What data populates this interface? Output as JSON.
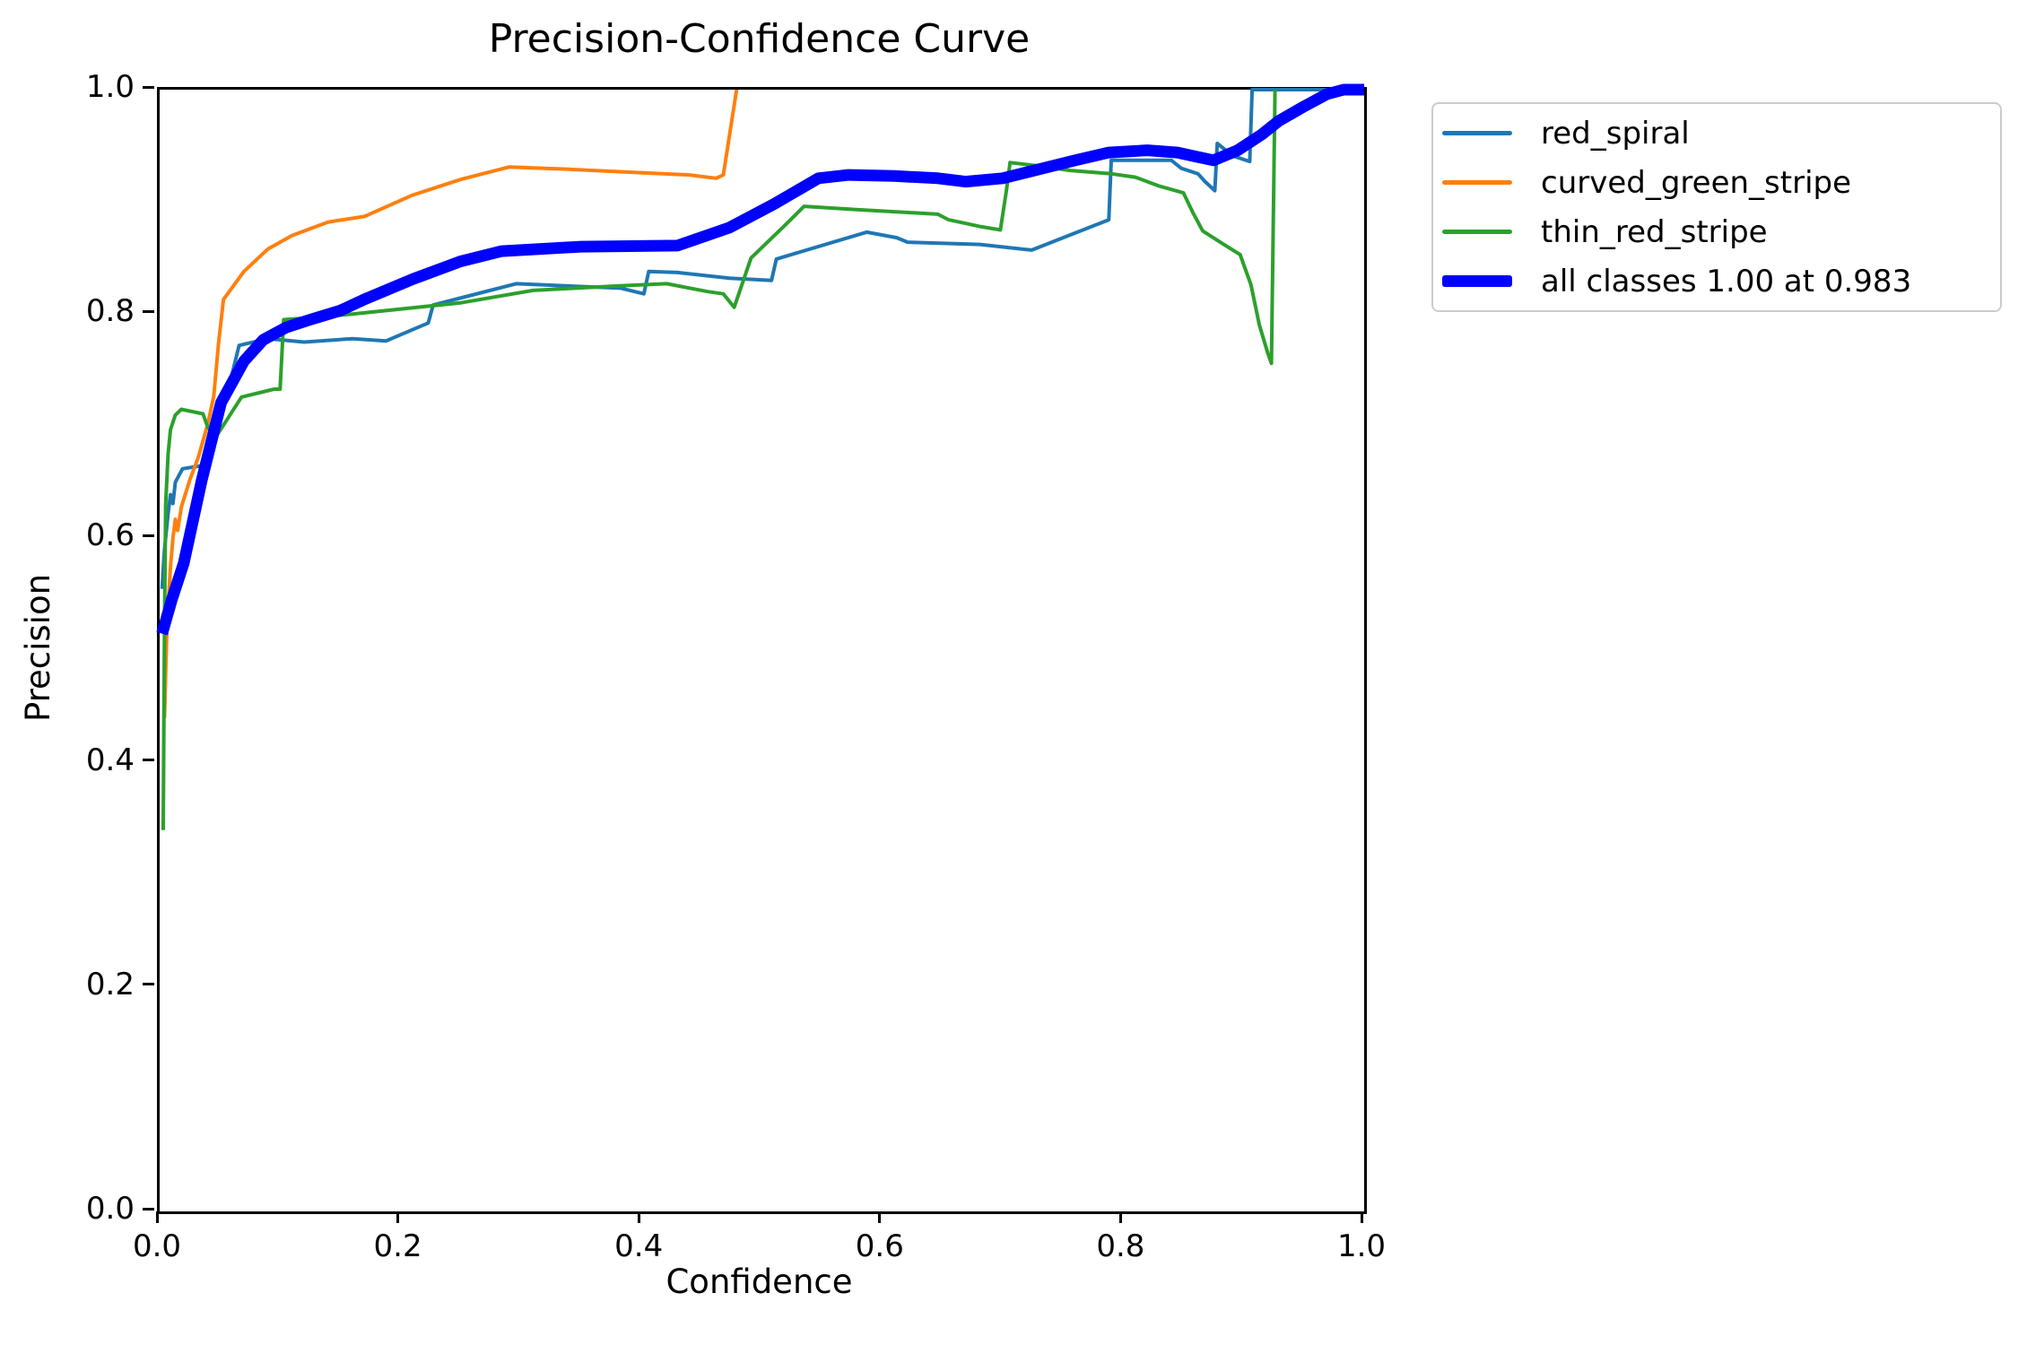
{
  "title": "Precision-Confidence Curve",
  "axes": {
    "xlabel": "Confidence",
    "ylabel": "Precision",
    "x_ticks": [
      "0.0",
      "0.2",
      "0.4",
      "0.6",
      "0.8",
      "1.0"
    ],
    "y_ticks": [
      "0.0",
      "0.2",
      "0.4",
      "0.6",
      "0.8",
      "1.0"
    ],
    "xlim": [
      0,
      1
    ],
    "ylim": [
      0,
      1
    ]
  },
  "colors": {
    "spine": "#000000",
    "background": "#ffffff",
    "legend_border": "#cccccc",
    "series_blue": "#1f77b4",
    "series_orange": "#ff7f0e",
    "series_green": "#2ca02c",
    "series_all": "#0000ff"
  },
  "chart_data": {
    "type": "line",
    "title": "Precision-Confidence Curve",
    "xlabel": "Confidence",
    "ylabel": "Precision",
    "xlim": [
      0,
      1
    ],
    "ylim": [
      0,
      1
    ],
    "grid": false,
    "legend_position": "outside upper right",
    "series": [
      {
        "name": "red_spiral",
        "label": "red_spiral",
        "color": "#1f77b4",
        "width": 4,
        "points": [
          [
            0.002,
            0.555
          ],
          [
            0.004,
            0.59
          ],
          [
            0.007,
            0.622
          ],
          [
            0.009,
            0.639
          ],
          [
            0.011,
            0.631
          ],
          [
            0.013,
            0.65
          ],
          [
            0.019,
            0.662
          ],
          [
            0.036,
            0.665
          ],
          [
            0.038,
            0.672
          ],
          [
            0.048,
            0.7
          ],
          [
            0.057,
            0.733
          ],
          [
            0.066,
            0.772
          ],
          [
            0.09,
            0.778
          ],
          [
            0.12,
            0.775
          ],
          [
            0.16,
            0.778
          ],
          [
            0.188,
            0.776
          ],
          [
            0.223,
            0.792
          ],
          [
            0.227,
            0.808
          ],
          [
            0.296,
            0.827
          ],
          [
            0.383,
            0.823
          ],
          [
            0.402,
            0.818
          ],
          [
            0.406,
            0.838
          ],
          [
            0.43,
            0.837
          ],
          [
            0.473,
            0.832
          ],
          [
            0.508,
            0.83
          ],
          [
            0.512,
            0.849
          ],
          [
            0.587,
            0.873
          ],
          [
            0.612,
            0.868
          ],
          [
            0.621,
            0.864
          ],
          [
            0.681,
            0.862
          ],
          [
            0.724,
            0.857
          ],
          [
            0.788,
            0.884
          ],
          [
            0.79,
            0.937
          ],
          [
            0.84,
            0.937
          ],
          [
            0.848,
            0.93
          ],
          [
            0.862,
            0.925
          ],
          [
            0.868,
            0.918
          ],
          [
            0.876,
            0.91
          ],
          [
            0.878,
            0.952
          ],
          [
            0.891,
            0.941
          ],
          [
            0.905,
            0.936
          ],
          [
            0.907,
            1.0
          ],
          [
            1.0,
            1.0
          ]
        ]
      },
      {
        "name": "curved_green_stripe",
        "label": "curved_green_stripe",
        "color": "#ff7f0e",
        "width": 4,
        "points": [
          [
            0.004,
            0.44
          ],
          [
            0.006,
            0.52
          ],
          [
            0.009,
            0.575
          ],
          [
            0.011,
            0.6
          ],
          [
            0.013,
            0.617
          ],
          [
            0.015,
            0.607
          ],
          [
            0.018,
            0.628
          ],
          [
            0.025,
            0.652
          ],
          [
            0.032,
            0.672
          ],
          [
            0.04,
            0.702
          ],
          [
            0.045,
            0.727
          ],
          [
            0.049,
            0.775
          ],
          [
            0.053,
            0.813
          ],
          [
            0.07,
            0.838
          ],
          [
            0.09,
            0.858
          ],
          [
            0.11,
            0.87
          ],
          [
            0.14,
            0.882
          ],
          [
            0.17,
            0.887
          ],
          [
            0.21,
            0.906
          ],
          [
            0.25,
            0.92
          ],
          [
            0.29,
            0.931
          ],
          [
            0.34,
            0.929
          ],
          [
            0.4,
            0.926
          ],
          [
            0.44,
            0.924
          ],
          [
            0.462,
            0.921
          ],
          [
            0.468,
            0.924
          ],
          [
            0.479,
            1.0
          ]
        ]
      },
      {
        "name": "thin_red_stripe",
        "label": "thin_red_stripe",
        "color": "#2ca02c",
        "width": 4,
        "points": [
          [
            0.003,
            0.34
          ],
          [
            0.004,
            0.52
          ],
          [
            0.005,
            0.63
          ],
          [
            0.007,
            0.675
          ],
          [
            0.009,
            0.697
          ],
          [
            0.013,
            0.71
          ],
          [
            0.018,
            0.715
          ],
          [
            0.036,
            0.711
          ],
          [
            0.04,
            0.699
          ],
          [
            0.047,
            0.691
          ],
          [
            0.068,
            0.726
          ],
          [
            0.095,
            0.733
          ],
          [
            0.1,
            0.733
          ],
          [
            0.103,
            0.795
          ],
          [
            0.14,
            0.798
          ],
          [
            0.16,
            0.8
          ],
          [
            0.25,
            0.81
          ],
          [
            0.31,
            0.821
          ],
          [
            0.38,
            0.825
          ],
          [
            0.421,
            0.827
          ],
          [
            0.455,
            0.82
          ],
          [
            0.468,
            0.818
          ],
          [
            0.477,
            0.806
          ],
          [
            0.491,
            0.85
          ],
          [
            0.52,
            0.88
          ],
          [
            0.535,
            0.896
          ],
          [
            0.58,
            0.893
          ],
          [
            0.63,
            0.89
          ],
          [
            0.646,
            0.889
          ],
          [
            0.655,
            0.884
          ],
          [
            0.681,
            0.878
          ],
          [
            0.698,
            0.875
          ],
          [
            0.703,
            0.91
          ],
          [
            0.706,
            0.935
          ],
          [
            0.73,
            0.932
          ],
          [
            0.756,
            0.928
          ],
          [
            0.79,
            0.925
          ],
          [
            0.81,
            0.922
          ],
          [
            0.83,
            0.914
          ],
          [
            0.85,
            0.908
          ],
          [
            0.858,
            0.89
          ],
          [
            0.866,
            0.874
          ],
          [
            0.885,
            0.861
          ],
          [
            0.897,
            0.853
          ],
          [
            0.906,
            0.826
          ],
          [
            0.913,
            0.79
          ],
          [
            0.92,
            0.765
          ],
          [
            0.923,
            0.756
          ],
          [
            0.926,
            1.0
          ]
        ]
      },
      {
        "name": "all classes",
        "label": "all classes 1.00 at 0.983",
        "color": "#0000ff",
        "width": 13,
        "points": [
          [
            0.002,
            0.515
          ],
          [
            0.01,
            0.545
          ],
          [
            0.02,
            0.578
          ],
          [
            0.035,
            0.652
          ],
          [
            0.051,
            0.721
          ],
          [
            0.07,
            0.758
          ],
          [
            0.086,
            0.777
          ],
          [
            0.105,
            0.788
          ],
          [
            0.125,
            0.795
          ],
          [
            0.15,
            0.803
          ],
          [
            0.17,
            0.813
          ],
          [
            0.21,
            0.831
          ],
          [
            0.25,
            0.847
          ],
          [
            0.284,
            0.856
          ],
          [
            0.35,
            0.86
          ],
          [
            0.43,
            0.861
          ],
          [
            0.473,
            0.877
          ],
          [
            0.51,
            0.898
          ],
          [
            0.547,
            0.921
          ],
          [
            0.572,
            0.924
          ],
          [
            0.61,
            0.923
          ],
          [
            0.646,
            0.921
          ],
          [
            0.669,
            0.918
          ],
          [
            0.7,
            0.921
          ],
          [
            0.73,
            0.929
          ],
          [
            0.76,
            0.937
          ],
          [
            0.788,
            0.944
          ],
          [
            0.82,
            0.946
          ],
          [
            0.845,
            0.944
          ],
          [
            0.862,
            0.94
          ],
          [
            0.875,
            0.937
          ],
          [
            0.895,
            0.946
          ],
          [
            0.915,
            0.96
          ],
          [
            0.929,
            0.972
          ],
          [
            0.95,
            0.985
          ],
          [
            0.969,
            0.996
          ],
          [
            0.983,
            1.0
          ],
          [
            1.0,
            1.0
          ]
        ]
      }
    ]
  }
}
